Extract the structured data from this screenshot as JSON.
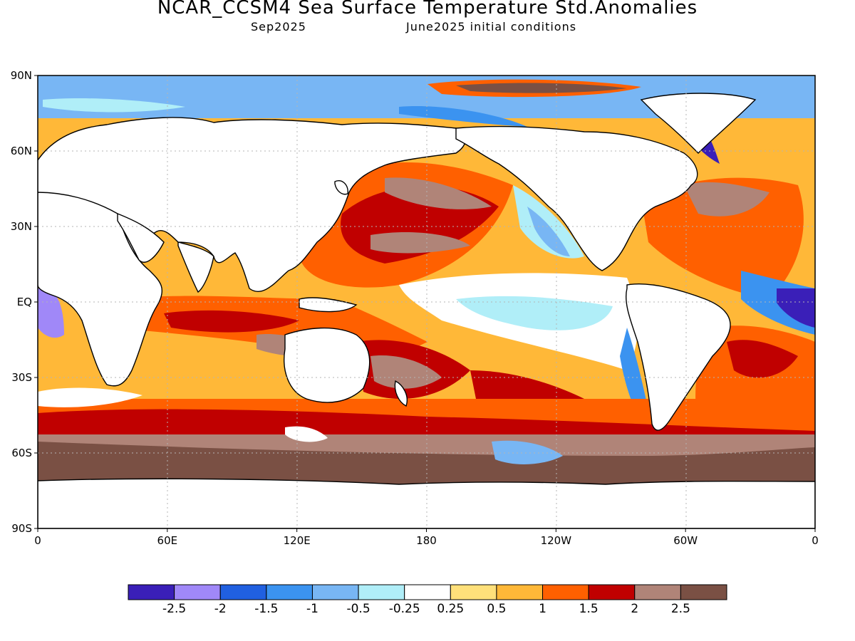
{
  "title": "NCAR_CCSM4 Sea Surface Temperature Std.Anomalies",
  "subtitle_left": "Sep2025",
  "subtitle_right": "June2025 initial conditions",
  "lat_labels": [
    "90N",
    "60N",
    "30N",
    "EQ",
    "30S",
    "60S",
    "90S"
  ],
  "lon_labels": [
    "0",
    "60E",
    "120E",
    "180",
    "120W",
    "60W",
    "0"
  ],
  "colorbar": {
    "colors": [
      "#3a1fb8",
      "#a088f8",
      "#2060e0",
      "#3b93f0",
      "#78b6f4",
      "#b0eef8",
      "#ffffff",
      "#ffe07a",
      "#ffb838",
      "#ff6000",
      "#c00000",
      "#b08478",
      "#7a5044"
    ],
    "tick_labels": [
      "-2.5",
      "-2",
      "-1.5",
      "-1",
      "-0.5",
      "-0.25",
      "0.25",
      "0.5",
      "1",
      "1.5",
      "2",
      "2.5"
    ]
  }
}
